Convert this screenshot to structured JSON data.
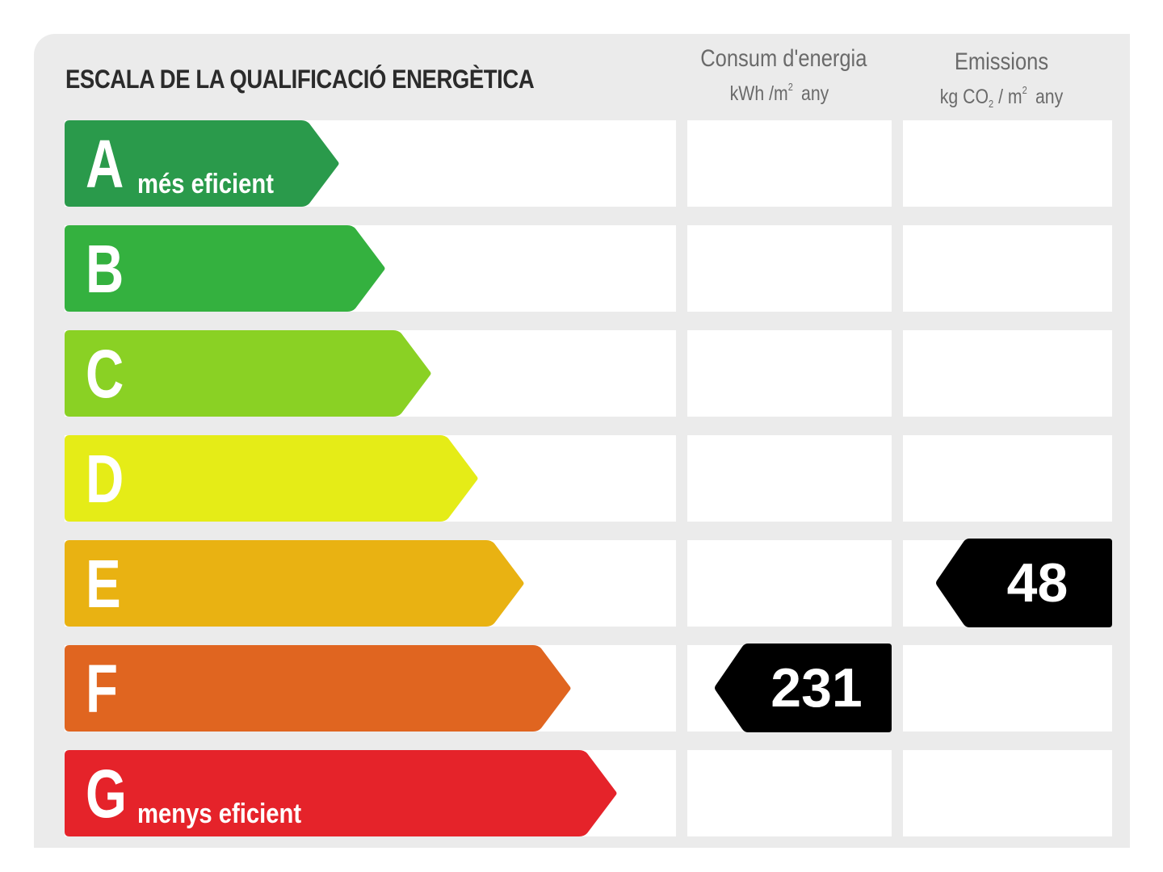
{
  "label": {
    "title": "ESCALA DE LA QUALIFICACIÓ ENERGÈTICA",
    "energy_header": {
      "line1": "Consum d'energia",
      "unit_kwh": "kWh /m",
      "unit_sup": "2",
      "unit_any": "any"
    },
    "emissions_header": {
      "line1": "Emissions",
      "unit_kg": "kg CO",
      "unit_sub": "2",
      "unit_m": " / m",
      "unit_sup": "2",
      "unit_any": "any"
    },
    "classes": [
      {
        "letter": "A",
        "note": "més eficient",
        "color": "#2a9a4b"
      },
      {
        "letter": "B",
        "note": "",
        "color": "#34b13f"
      },
      {
        "letter": "C",
        "note": "",
        "color": "#8ad124"
      },
      {
        "letter": "D",
        "note": "",
        "color": "#e5ec17"
      },
      {
        "letter": "E",
        "note": "",
        "color": "#e9b212"
      },
      {
        "letter": "F",
        "note": "",
        "color": "#e06520"
      },
      {
        "letter": "G",
        "note": "menys eficient",
        "color": "#e5232a"
      }
    ],
    "energy_rating": {
      "class": "F",
      "value": "231"
    },
    "emissions_rating": {
      "class": "E",
      "value": "48"
    },
    "marker_color": "#000000"
  }
}
